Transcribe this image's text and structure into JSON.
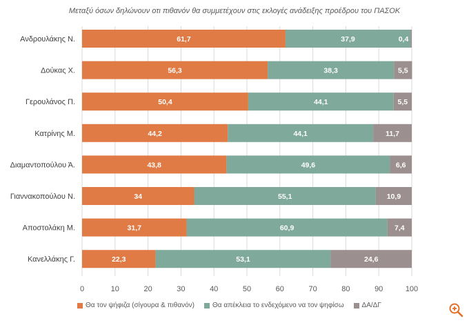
{
  "chart_data": {
    "type": "bar",
    "orientation": "horizontal",
    "stacked": true,
    "title": "Μεταξύ όσων δηλώνουν οτι πιθανόν θα συμμετέχουν στις εκλογές ανάδειξης προέδρου του ΠΑΣΟΚ",
    "categories": [
      "Ανδρουλάκης Ν.",
      "Δούκας Χ.",
      "Γερουλάνος Π.",
      "Κατρίνης Μ.",
      "Διαμαντοπούλου Ά.",
      "Γιαννακοπούλου Ν.",
      "Αποστολάκη Μ.",
      "Κανελλάκης Γ."
    ],
    "series": [
      {
        "name": "Θα τον ψήφιζα (σίγουρα & πιθανόν)",
        "color": "#E07B45",
        "values": [
          61.7,
          56.3,
          50.4,
          44.2,
          43.8,
          34,
          31.7,
          22.3
        ],
        "labels": [
          "61,7",
          "56,3",
          "50,4",
          "44,2",
          "43,8",
          "34",
          "31,7",
          "22,3"
        ]
      },
      {
        "name": "Θα απέκλεια το ενδεχόμενο να τον ψηφίσω",
        "color": "#7FA99B",
        "values": [
          37.9,
          38.3,
          44.1,
          44.1,
          49.6,
          55.1,
          60.9,
          53.1
        ],
        "labels": [
          "37,9",
          "38,3",
          "44,1",
          "44,1",
          "49,6",
          "55,1",
          "60,9",
          "53,1"
        ]
      },
      {
        "name": "ΔΑ/ΔΓ",
        "color": "#9C8F8F",
        "values": [
          0.4,
          5.5,
          5.5,
          11.7,
          6.6,
          10.9,
          7.4,
          24.6
        ],
        "labels": [
          "0,4",
          "5,5",
          "5,5",
          "11,7",
          "6,6",
          "10,9",
          "7,4",
          "24,6"
        ]
      }
    ],
    "xlim": [
      0,
      100
    ],
    "xticks": [
      "0",
      "10",
      "20",
      "30",
      "40",
      "50",
      "60",
      "70",
      "80",
      "90",
      "100"
    ],
    "xlabel": "",
    "ylabel": "",
    "legend_position": "bottom",
    "grid": true
  },
  "icons": {
    "corner": "zoom-in-icon",
    "corner_color": "#E0702A"
  }
}
